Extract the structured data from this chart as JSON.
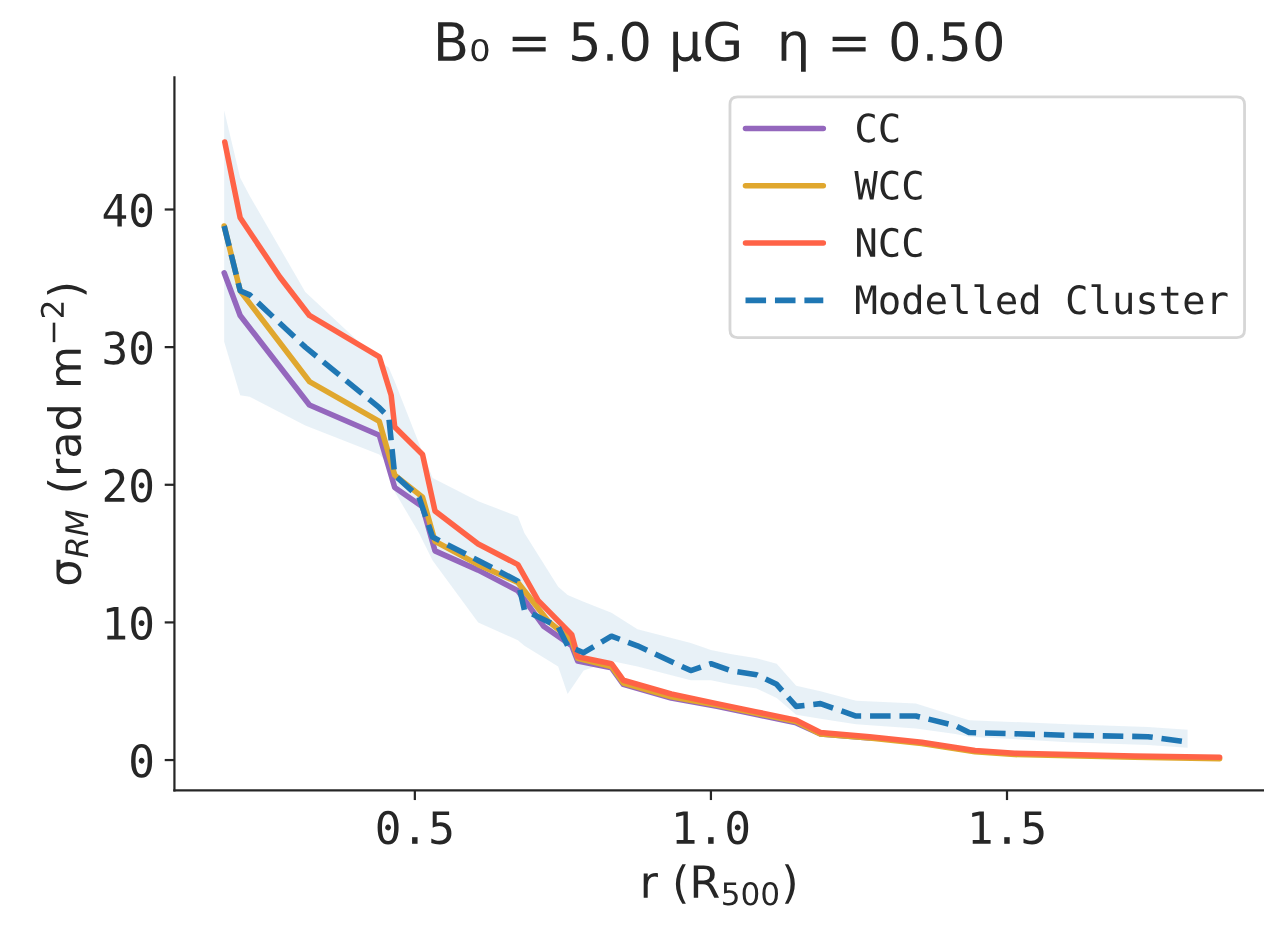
{
  "chart_data": {
    "type": "line",
    "title": "B₀ = 5.0 μG  η = 0.50",
    "xlabel": "r (R$_{500}$)",
    "ylabel": "σ$_{RM}$ (rad m$^{−2}$)",
    "xlim": [
      0.094,
      1.934
    ],
    "ylim": [
      -2.2,
      49.6
    ],
    "xticks": [
      {
        "value": 0.5,
        "label": "0.5"
      },
      {
        "value": 1.0,
        "label": "1.0"
      },
      {
        "value": 1.5,
        "label": "1.5"
      }
    ],
    "yticks": [
      0,
      10,
      20,
      30,
      40
    ],
    "grid": false,
    "legend": "top right",
    "series": [
      {
        "name": "CC",
        "color": "#9467bd",
        "line_style": "solid",
        "x": [
          0.178,
          0.205,
          0.322,
          0.44,
          0.466,
          0.513,
          0.534,
          0.607,
          0.674,
          0.718,
          0.765,
          0.775,
          0.832,
          0.852,
          0.933,
          1.01,
          1.077,
          1.144,
          1.185,
          1.268
        ],
        "values": [
          35.4,
          32.3,
          25.8,
          23.6,
          19.8,
          18.4,
          15.2,
          13.8,
          12.3,
          9.7,
          8.3,
          7.2,
          6.7,
          5.5,
          4.5,
          3.9,
          3.3,
          2.7,
          1.9,
          1.6
        ]
      },
      {
        "name": "WCC",
        "color": "#e0a72e",
        "line_style": "solid",
        "x": [
          0.178,
          0.205,
          0.322,
          0.44,
          0.466,
          0.513,
          0.534,
          0.607,
          0.674,
          0.725,
          0.765,
          0.775,
          0.832,
          0.852,
          0.933,
          1.01,
          1.077,
          1.144,
          1.185,
          1.268,
          1.356,
          1.446,
          1.513,
          1.715,
          1.859
        ],
        "values": [
          38.8,
          34.1,
          27.5,
          24.6,
          20.7,
          19.1,
          15.9,
          14.2,
          12.9,
          10.1,
          8.7,
          7.4,
          6.8,
          5.6,
          4.6,
          4.0,
          3.4,
          2.8,
          1.9,
          1.6,
          1.2,
          0.6,
          0.4,
          0.2,
          0.1
        ]
      },
      {
        "name": "NCC",
        "color": "#ff6347",
        "line_style": "solid",
        "x": [
          0.179,
          0.205,
          0.272,
          0.322,
          0.44,
          0.46,
          0.466,
          0.513,
          0.534,
          0.607,
          0.674,
          0.708,
          0.765,
          0.775,
          0.832,
          0.852,
          0.933,
          1.01,
          1.077,
          1.144,
          1.185,
          1.268,
          1.356,
          1.446,
          1.513,
          1.715,
          1.859
        ],
        "values": [
          44.9,
          39.4,
          35.1,
          32.3,
          29.3,
          26.5,
          24.2,
          22.2,
          18.1,
          15.7,
          14.2,
          11.6,
          9.1,
          7.5,
          7.0,
          5.8,
          4.8,
          4.1,
          3.5,
          2.9,
          2.0,
          1.7,
          1.3,
          0.7,
          0.5,
          0.3,
          0.2
        ]
      },
      {
        "name": "Modelled Cluster",
        "color": "#1f77b4",
        "line_style": "dashed",
        "x": [
          0.178,
          0.205,
          0.221,
          0.315,
          0.44,
          0.456,
          0.466,
          0.507,
          0.53,
          0.607,
          0.674,
          0.685,
          0.742,
          0.758,
          0.785,
          0.832,
          0.876,
          0.966,
          1.0,
          1.033,
          1.077,
          1.111,
          1.144,
          1.185,
          1.245,
          1.346,
          1.413,
          1.436,
          1.604,
          1.738,
          1.805
        ],
        "values": [
          38.8,
          34.1,
          33.8,
          30.0,
          25.6,
          24.9,
          20.7,
          19.1,
          16.2,
          14.5,
          13.0,
          10.9,
          9.7,
          8.3,
          7.8,
          9.0,
          8.3,
          6.5,
          7.0,
          6.5,
          6.2,
          5.5,
          3.9,
          4.1,
          3.2,
          3.2,
          2.5,
          2.0,
          1.8,
          1.7,
          1.3
        ],
        "lower": [
          30.4,
          26.5,
          26.4,
          24.3,
          22.2,
          21.5,
          19.5,
          16.5,
          14.5,
          10.0,
          8.7,
          8.3,
          6.8,
          4.8,
          6.5,
          7.2,
          6.8,
          5.8,
          5.8,
          5.5,
          5.2,
          4.5,
          3.3,
          3.0,
          2.6,
          2.3,
          1.9,
          1.7,
          1.3,
          1.1,
          0.9
        ],
        "upper": [
          47.2,
          42.3,
          41.0,
          34.0,
          29.0,
          28.5,
          27.5,
          23.0,
          20.5,
          18.8,
          17.7,
          16.5,
          12.6,
          12.0,
          11.5,
          10.7,
          9.5,
          8.5,
          8.0,
          7.7,
          7.4,
          7.0,
          5.4,
          5.0,
          4.3,
          4.1,
          3.2,
          2.9,
          2.6,
          2.4,
          2.2
        ]
      }
    ]
  }
}
